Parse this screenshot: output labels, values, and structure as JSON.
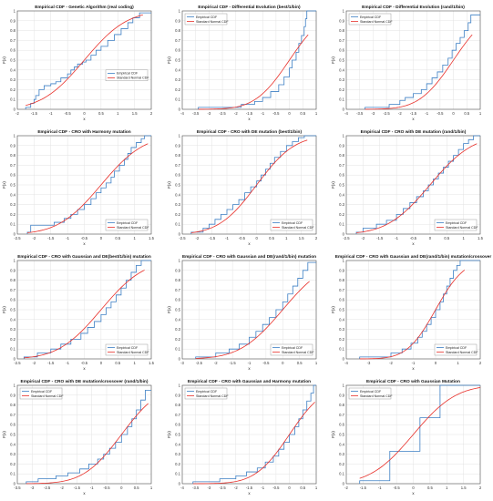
{
  "figure": {
    "legend_labels": [
      "Empirical CDF",
      "Standard Normal CDF"
    ],
    "series_colors": {
      "empirical": "#3c7fc4",
      "normal": "#e8302a"
    },
    "ylabel": "F(x)",
    "xlabel": "x"
  },
  "chart_data": [
    {
      "type": "line",
      "title": "Empirical CDF - Genetic Algorithm (real coding)",
      "xlabel": "x",
      "ylabel": "F(x)",
      "xlim": [
        -2,
        2
      ],
      "ylim": [
        0,
        1
      ],
      "xticks": [
        "-2",
        "-1.5",
        "-1",
        "-0.5",
        "0",
        "0.5",
        "1",
        "1.5",
        "2"
      ],
      "yticks": [
        "0",
        "0.1",
        "0.2",
        "0.3",
        "0.4",
        "0.5",
        "0.6",
        "0.7",
        "0.8",
        "0.9",
        "1"
      ],
      "grid": true,
      "legend": "center-right",
      "series": [
        {
          "name": "Empirical CDF",
          "kind": "step",
          "x": [
            -1.75,
            -1.6,
            -1.5,
            -1.45,
            -1.35,
            -1.2,
            -1.0,
            -0.85,
            -0.7,
            -0.5,
            -0.4,
            -0.3,
            -0.2,
            -0.05,
            0.05,
            0.2,
            0.35,
            0.5,
            0.7,
            0.9,
            1.1,
            1.3,
            1.45,
            1.65
          ],
          "y": [
            0.02,
            0.06,
            0.1,
            0.14,
            0.2,
            0.24,
            0.26,
            0.28,
            0.32,
            0.36,
            0.4,
            0.43,
            0.46,
            0.48,
            0.5,
            0.55,
            0.6,
            0.64,
            0.7,
            0.76,
            0.82,
            0.88,
            0.93,
            0.98
          ]
        },
        {
          "name": "Standard Normal CDF",
          "kind": "normal",
          "x_range": [
            -1.75,
            1.75
          ]
        }
      ]
    },
    {
      "type": "line",
      "title": "Empirical CDF - Differential Evolution (best/1/bin)",
      "xlabel": "x",
      "ylabel": "F(x)",
      "xlim": [
        -4,
        1
      ],
      "ylim": [
        0,
        1
      ],
      "xticks": [
        "-4",
        "-3.5",
        "-3",
        "-2.5",
        "-2",
        "-1.5",
        "-1",
        "-0.5",
        "0",
        "0.5",
        "1"
      ],
      "yticks": [
        "0",
        "0.1",
        "0.2",
        "0.3",
        "0.4",
        "0.5",
        "0.6",
        "0.7",
        "0.8",
        "0.9",
        "1"
      ],
      "grid": true,
      "legend": "top-left",
      "series": [
        {
          "name": "Empirical CDF",
          "kind": "step",
          "x": [
            -3.4,
            -1.8,
            -1.3,
            -1.0,
            -0.7,
            -0.4,
            -0.2,
            0.0,
            0.1,
            0.25,
            0.35,
            0.45,
            0.55,
            0.6,
            0.65
          ],
          "y": [
            0.02,
            0.05,
            0.08,
            0.12,
            0.18,
            0.25,
            0.33,
            0.42,
            0.5,
            0.58,
            0.67,
            0.75,
            0.84,
            0.92,
            1.0
          ]
        },
        {
          "name": "Standard Normal CDF",
          "kind": "normal",
          "x_range": [
            -3.4,
            0.7
          ]
        }
      ]
    },
    {
      "type": "line",
      "title": "Empirical CDF - Differential Evolution (rand/1/bin)",
      "xlabel": "x",
      "ylabel": "F(x)",
      "xlim": [
        -4,
        1
      ],
      "ylim": [
        0,
        1
      ],
      "xticks": [
        "-4",
        "-3.5",
        "-3",
        "-2.5",
        "-2",
        "-1.5",
        "-1",
        "-0.5",
        "0",
        "0.5",
        "1"
      ],
      "yticks": [
        "0",
        "0.1",
        "0.2",
        "0.3",
        "0.4",
        "0.5",
        "0.6",
        "0.7",
        "0.8",
        "0.9",
        "1"
      ],
      "grid": true,
      "legend": "top-left",
      "series": [
        {
          "name": "Empirical CDF",
          "kind": "step",
          "x": [
            -3.3,
            -2.4,
            -2.0,
            -1.8,
            -1.5,
            -1.2,
            -1.0,
            -0.8,
            -0.6,
            -0.4,
            -0.2,
            -0.05,
            0.1,
            0.25,
            0.4,
            0.55,
            0.65
          ],
          "y": [
            0.02,
            0.05,
            0.09,
            0.12,
            0.16,
            0.2,
            0.26,
            0.32,
            0.38,
            0.45,
            0.52,
            0.6,
            0.67,
            0.73,
            0.8,
            0.88,
            0.96
          ]
        },
        {
          "name": "Standard Normal CDF",
          "kind": "normal",
          "x_range": [
            -3.3,
            0.7
          ]
        }
      ]
    },
    {
      "type": "line",
      "title": "Empirical CDF - CRO with Harmony mutation",
      "xlabel": "x",
      "ylabel": "F(x)",
      "xlim": [
        -2.5,
        1.5
      ],
      "ylim": [
        0,
        1
      ],
      "xticks": [
        "-2.5",
        "-2",
        "-1.5",
        "-1",
        "-0.5",
        "0",
        "0.5",
        "1",
        "1.5"
      ],
      "yticks": [
        "0",
        "0.1",
        "0.2",
        "0.3",
        "0.4",
        "0.5",
        "0.6",
        "0.7",
        "0.8",
        "0.9",
        "1"
      ],
      "grid": true,
      "legend": "bottom-right",
      "series": [
        {
          "name": "Empirical CDF",
          "kind": "step",
          "x": [
            -2.2,
            -2.1,
            -1.4,
            -1.1,
            -0.9,
            -0.7,
            -0.5,
            -0.3,
            -0.15,
            0.0,
            0.15,
            0.3,
            0.4,
            0.55,
            0.7,
            0.8,
            0.9,
            1.05,
            1.2,
            1.3
          ],
          "y": [
            0.02,
            0.09,
            0.12,
            0.16,
            0.2,
            0.25,
            0.3,
            0.36,
            0.42,
            0.47,
            0.52,
            0.58,
            0.64,
            0.7,
            0.76,
            0.82,
            0.88,
            0.93,
            0.97,
            1.0
          ]
        },
        {
          "name": "Standard Normal CDF",
          "kind": "normal",
          "x_range": [
            -2.2,
            1.4
          ]
        }
      ]
    },
    {
      "type": "line",
      "title": "Empirical CDF - CRO with DE mutation (best/1/bin)",
      "xlabel": "x",
      "ylabel": "F(x)",
      "xlim": [
        -2.5,
        2
      ],
      "ylim": [
        0,
        1
      ],
      "xticks": [
        "-2.5",
        "-2",
        "-1.5",
        "-1",
        "-0.5",
        "0",
        "0.5",
        "1",
        "1.5",
        "2"
      ],
      "yticks": [
        "0",
        "0.1",
        "0.2",
        "0.3",
        "0.4",
        "0.5",
        "0.6",
        "0.7",
        "0.8",
        "0.9",
        "1"
      ],
      "grid": true,
      "legend": "bottom-right",
      "series": [
        {
          "name": "Empirical CDF",
          "kind": "step",
          "x": [
            -2.2,
            -1.8,
            -1.6,
            -1.4,
            -1.2,
            -1.0,
            -0.8,
            -0.6,
            -0.4,
            -0.2,
            0.0,
            0.15,
            0.3,
            0.45,
            0.6,
            0.8,
            1.0,
            1.2,
            1.4,
            1.6
          ],
          "y": [
            0.02,
            0.06,
            0.1,
            0.15,
            0.2,
            0.25,
            0.3,
            0.35,
            0.42,
            0.48,
            0.54,
            0.6,
            0.66,
            0.72,
            0.78,
            0.84,
            0.9,
            0.94,
            0.98,
            1.0
          ]
        },
        {
          "name": "Standard Normal CDF",
          "kind": "normal",
          "x_range": [
            -2.2,
            1.7
          ]
        }
      ]
    },
    {
      "type": "line",
      "title": "Empirical CDF - CRO with DE mutation (rand/1/bin)",
      "xlabel": "x",
      "ylabel": "F(x)",
      "xlim": [
        -2.5,
        1.5
      ],
      "ylim": [
        0,
        1
      ],
      "xticks": [
        "-2.5",
        "-2",
        "-1.5",
        "-1",
        "-0.5",
        "0",
        "0.5",
        "1",
        "1.5"
      ],
      "yticks": [
        "0",
        "0.1",
        "0.2",
        "0.3",
        "0.4",
        "0.5",
        "0.6",
        "0.7",
        "0.8",
        "0.9",
        "1"
      ],
      "grid": true,
      "legend": "bottom-right",
      "series": [
        {
          "name": "Empirical CDF",
          "kind": "step",
          "x": [
            -2.2,
            -2.0,
            -1.6,
            -1.3,
            -1.0,
            -0.8,
            -0.6,
            -0.4,
            -0.2,
            -0.05,
            0.1,
            0.25,
            0.4,
            0.55,
            0.7,
            0.85,
            1.0,
            1.15,
            1.3
          ],
          "y": [
            0.02,
            0.06,
            0.1,
            0.14,
            0.2,
            0.26,
            0.32,
            0.38,
            0.44,
            0.5,
            0.56,
            0.62,
            0.68,
            0.74,
            0.8,
            0.86,
            0.92,
            0.96,
            1.0
          ]
        },
        {
          "name": "Standard Normal CDF",
          "kind": "normal",
          "x_range": [
            -2.2,
            1.4
          ]
        }
      ]
    },
    {
      "type": "line",
      "title": "Empirical CDF - CRO with Gaussian and DE(best/1/bin) mutation",
      "xlabel": "x",
      "ylabel": "F(x)",
      "xlim": [
        -2.5,
        1.5
      ],
      "ylim": [
        0,
        1
      ],
      "xticks": [
        "-2.5",
        "-2",
        "-1.5",
        "-1",
        "-0.5",
        "0",
        "0.5",
        "1",
        "1.5"
      ],
      "yticks": [
        "0",
        "0.1",
        "0.2",
        "0.3",
        "0.4",
        "0.5",
        "0.6",
        "0.7",
        "0.8",
        "0.9",
        "1"
      ],
      "grid": true,
      "legend": "bottom-right",
      "series": [
        {
          "name": "Empirical CDF",
          "kind": "step",
          "x": [
            -2.3,
            -1.9,
            -1.5,
            -1.2,
            -0.9,
            -0.6,
            -0.4,
            -0.2,
            0.0,
            0.15,
            0.3,
            0.45,
            0.6,
            0.75,
            0.9,
            1.05,
            1.2
          ],
          "y": [
            0.02,
            0.06,
            0.1,
            0.15,
            0.2,
            0.26,
            0.32,
            0.38,
            0.45,
            0.52,
            0.58,
            0.65,
            0.72,
            0.8,
            0.88,
            0.95,
            1.0
          ]
        },
        {
          "name": "Standard Normal CDF",
          "kind": "normal",
          "x_range": [
            -2.3,
            1.3
          ]
        }
      ]
    },
    {
      "type": "line",
      "title": "Empirical CDF - CRO with Gaussian and DE(rand/1/bin) mutation",
      "xlabel": "x",
      "ylabel": "F(x)",
      "xlim": [
        -3,
        1
      ],
      "ylim": [
        0,
        1
      ],
      "xticks": [
        "-3",
        "-2.5",
        "-2",
        "-1.5",
        "-1",
        "-0.5",
        "0",
        "0.5",
        "1"
      ],
      "yticks": [
        "0",
        "0.1",
        "0.2",
        "0.3",
        "0.4",
        "0.5",
        "0.6",
        "0.7",
        "0.8",
        "0.9",
        "1"
      ],
      "grid": true,
      "legend": "bottom-right",
      "series": [
        {
          "name": "Empirical CDF",
          "kind": "step",
          "x": [
            -2.6,
            -2.0,
            -1.6,
            -1.3,
            -1.0,
            -0.8,
            -0.6,
            -0.4,
            -0.2,
            0.0,
            0.15,
            0.3,
            0.45,
            0.6,
            0.75
          ],
          "y": [
            0.02,
            0.06,
            0.1,
            0.15,
            0.22,
            0.28,
            0.35,
            0.42,
            0.5,
            0.58,
            0.66,
            0.74,
            0.82,
            0.9,
            0.98
          ]
        },
        {
          "name": "Standard Normal CDF",
          "kind": "normal",
          "x_range": [
            -2.6,
            0.8
          ]
        }
      ]
    },
    {
      "type": "line",
      "title": "Empirical CDF - CRO with Gaussian and DE(rand/1/bin) mutation/crossover",
      "xlabel": "x",
      "ylabel": "F(x)",
      "xlim": [
        -4,
        2
      ],
      "ylim": [
        0,
        1
      ],
      "xticks": [
        "-4",
        "-3",
        "-2",
        "-1",
        "0",
        "1",
        "2"
      ],
      "yticks": [
        "0",
        "0.1",
        "0.2",
        "0.3",
        "0.4",
        "0.5",
        "0.6",
        "0.7",
        "0.8",
        "0.9",
        "1"
      ],
      "grid": true,
      "legend": "bottom-right",
      "series": [
        {
          "name": "Empirical CDF",
          "kind": "step",
          "x": [
            -3.4,
            -2.0,
            -1.5,
            -1.1,
            -0.8,
            -0.6,
            -0.4,
            -0.2,
            0.0,
            0.2,
            0.35,
            0.5,
            0.65,
            0.8,
            0.95,
            1.1
          ],
          "y": [
            0.02,
            0.06,
            0.1,
            0.16,
            0.22,
            0.28,
            0.35,
            0.42,
            0.5,
            0.58,
            0.66,
            0.74,
            0.82,
            0.9,
            0.95,
            1.0
          ]
        },
        {
          "name": "Standard Normal CDF",
          "kind": "normal",
          "x_range": [
            -3.4,
            1.3
          ]
        }
      ]
    },
    {
      "type": "line",
      "title": "Empirical CDF - CRO with DE mutation/crossover (rand/1/bin)",
      "xlabel": "x",
      "ylabel": "F(x)",
      "xlim": [
        -3.5,
        1
      ],
      "ylim": [
        0,
        1
      ],
      "xticks": [
        "-3.5",
        "-3",
        "-2.5",
        "-2",
        "-1.5",
        "-1",
        "-0.5",
        "0",
        "0.5",
        "1"
      ],
      "yticks": [
        "0",
        "0.1",
        "0.2",
        "0.3",
        "0.4",
        "0.5",
        "0.6",
        "0.7",
        "0.8",
        "0.9",
        "1"
      ],
      "grid": true,
      "legend": "top-left",
      "series": [
        {
          "name": "Empirical CDF",
          "kind": "step",
          "x": [
            -3.2,
            -2.8,
            -2.2,
            -1.8,
            -1.4,
            -1.1,
            -0.8,
            -0.6,
            -0.4,
            -0.2,
            0.0,
            0.2,
            0.35,
            0.5,
            0.65,
            0.8
          ],
          "y": [
            0.02,
            0.05,
            0.08,
            0.11,
            0.15,
            0.2,
            0.25,
            0.3,
            0.36,
            0.42,
            0.5,
            0.58,
            0.66,
            0.75,
            0.85,
            0.95
          ]
        },
        {
          "name": "Standard Normal CDF",
          "kind": "normal",
          "x_range": [
            -3.2,
            0.9
          ]
        }
      ]
    },
    {
      "type": "line",
      "title": "Empirical CDF - CRO with Gaussian and Harmony mutation",
      "xlabel": "x",
      "ylabel": "F(x)",
      "xlim": [
        -4,
        1
      ],
      "ylim": [
        0,
        1
      ],
      "xticks": [
        "-4",
        "-3.5",
        "-3",
        "-2.5",
        "-2",
        "-1.5",
        "-1",
        "-0.5",
        "0",
        "0.5",
        "1"
      ],
      "yticks": [
        "0",
        "0.1",
        "0.2",
        "0.3",
        "0.4",
        "0.5",
        "0.6",
        "0.7",
        "0.8",
        "0.9",
        "1"
      ],
      "grid": true,
      "legend": "top-left",
      "series": [
        {
          "name": "Empirical CDF",
          "kind": "step",
          "x": [
            -3.6,
            -2.6,
            -2.0,
            -1.6,
            -1.2,
            -0.9,
            -0.6,
            -0.4,
            -0.2,
            0.0,
            0.2,
            0.35,
            0.5,
            0.65,
            0.8,
            0.9
          ],
          "y": [
            0.02,
            0.05,
            0.08,
            0.12,
            0.16,
            0.22,
            0.28,
            0.35,
            0.42,
            0.5,
            0.58,
            0.66,
            0.75,
            0.84,
            0.92,
            1.0
          ]
        },
        {
          "name": "Standard Normal CDF",
          "kind": "normal",
          "x_range": [
            -3.6,
            0.95
          ]
        }
      ]
    },
    {
      "type": "line",
      "title": "Empirical CDF - CRO with Gaussian Mutation",
      "xlabel": "x",
      "ylabel": "F(x)",
      "xlim": [
        -2,
        2
      ],
      "ylim": [
        0,
        1
      ],
      "xticks": [
        "-2",
        "-1.5",
        "-1",
        "-0.5",
        "0",
        "0.5",
        "1",
        "1.5",
        "2"
      ],
      "yticks": [
        "0",
        "0.1",
        "0.2",
        "0.3",
        "0.4",
        "0.5",
        "0.6",
        "0.7",
        "0.8",
        "0.9",
        "1"
      ],
      "grid": true,
      "legend": "top-left",
      "series": [
        {
          "name": "Empirical CDF",
          "kind": "step",
          "x": [
            -1.6,
            -0.7,
            0.2,
            0.8
          ],
          "y": [
            0.03,
            0.33,
            0.67,
            1.0
          ]
        },
        {
          "name": "Standard Normal CDF",
          "kind": "normal",
          "x_range": [
            -1.6,
            2.0
          ]
        }
      ]
    }
  ]
}
